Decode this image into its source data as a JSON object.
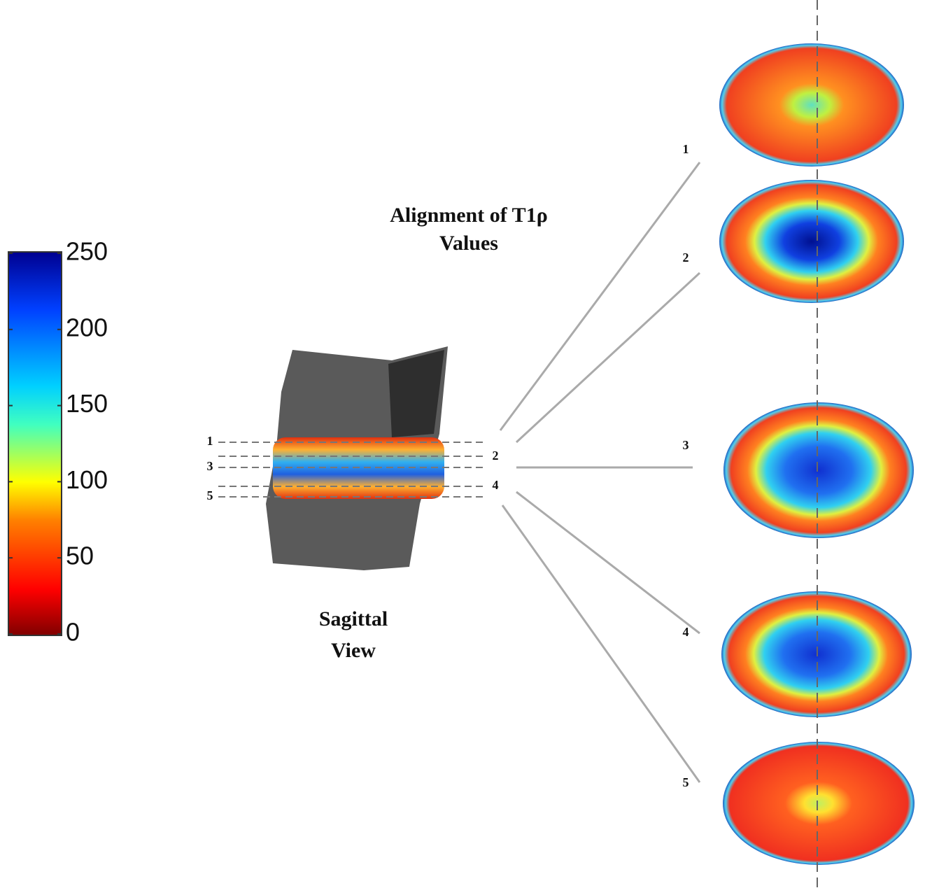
{
  "colorbar": {
    "ticks": [
      0,
      50,
      100,
      150,
      200,
      250
    ]
  },
  "title": [
    "Alignment of T1ρ",
    "Values"
  ],
  "sagittal_label": [
    "Sagittal",
    "View"
  ],
  "slice_labels_left": [
    "1",
    "3",
    "5"
  ],
  "slice_labels_right": [
    "2",
    "4"
  ],
  "axial_labels": [
    "1",
    "2",
    "3",
    "4",
    "5"
  ]
}
